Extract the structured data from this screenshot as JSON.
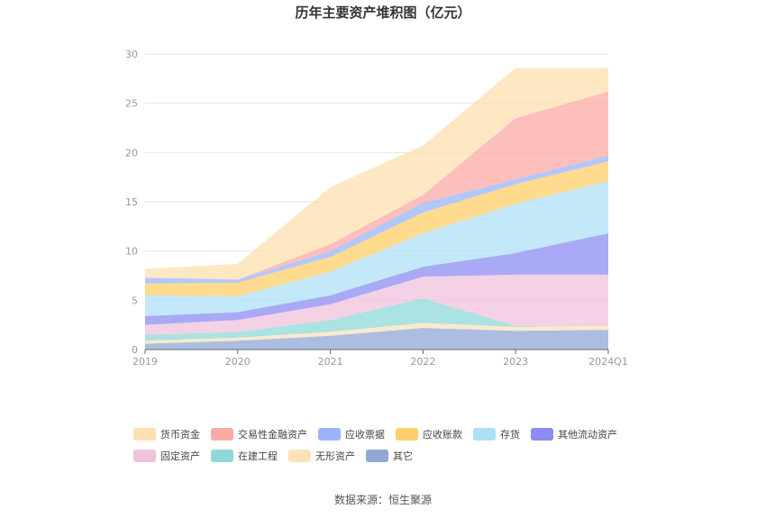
{
  "chart_data": {
    "type": "area",
    "stacked": true,
    "title": "历年主要资产堆积图（亿元）",
    "source": "数据来源：恒生聚源",
    "categories": [
      "2019",
      "2020",
      "2021",
      "2022",
      "2023",
      "2024Q1"
    ],
    "ylim": [
      0,
      30
    ],
    "yticks": [
      0,
      5,
      10,
      15,
      20,
      25,
      30
    ],
    "grid": true,
    "legend_position": "bottom",
    "series": [
      {
        "name": "其它",
        "color": "#8fa8d8",
        "values": [
          0.6,
          0.9,
          1.4,
          2.2,
          1.9,
          2.0
        ]
      },
      {
        "name": "无形资产",
        "color": "#fde2b8",
        "values": [
          0.3,
          0.3,
          0.4,
          0.5,
          0.4,
          0.4
        ]
      },
      {
        "name": "在建工程",
        "color": "#8fd8d8",
        "values": [
          0.6,
          0.6,
          1.2,
          2.5,
          0.1,
          0.0
        ]
      },
      {
        "name": "固定资产",
        "color": "#f0c2dc",
        "values": [
          1.0,
          1.2,
          1.6,
          2.2,
          5.2,
          5.2
        ]
      },
      {
        "name": "其他流动资产",
        "color": "#8c8cf2",
        "values": [
          0.9,
          0.8,
          0.9,
          1.0,
          2.2,
          4.2
        ]
      },
      {
        "name": "存货",
        "color": "#ade0f7",
        "values": [
          2.1,
          1.6,
          2.4,
          3.4,
          5.0,
          5.3
        ]
      },
      {
        "name": "应收账款",
        "color": "#fdcf6a",
        "values": [
          1.2,
          1.4,
          1.5,
          2.1,
          2.0,
          2.0
        ]
      },
      {
        "name": "应收票据",
        "color": "#9bb4f9",
        "values": [
          0.6,
          0.3,
          0.6,
          1.0,
          0.5,
          0.6
        ]
      },
      {
        "name": "交易性金融资产",
        "color": "#fcaaa4",
        "values": [
          0.0,
          0.0,
          0.7,
          0.8,
          6.2,
          6.5
        ]
      },
      {
        "name": "货币资金",
        "color": "#fde0b0",
        "values": [
          0.9,
          1.6,
          5.8,
          5.0,
          5.1,
          2.4
        ]
      }
    ],
    "legend_order": [
      "货币资金",
      "交易性金融资产",
      "应收票据",
      "应收账款",
      "存货",
      "其他流动资产",
      "固定资产",
      "在建工程",
      "无形资产",
      "其它"
    ]
  }
}
